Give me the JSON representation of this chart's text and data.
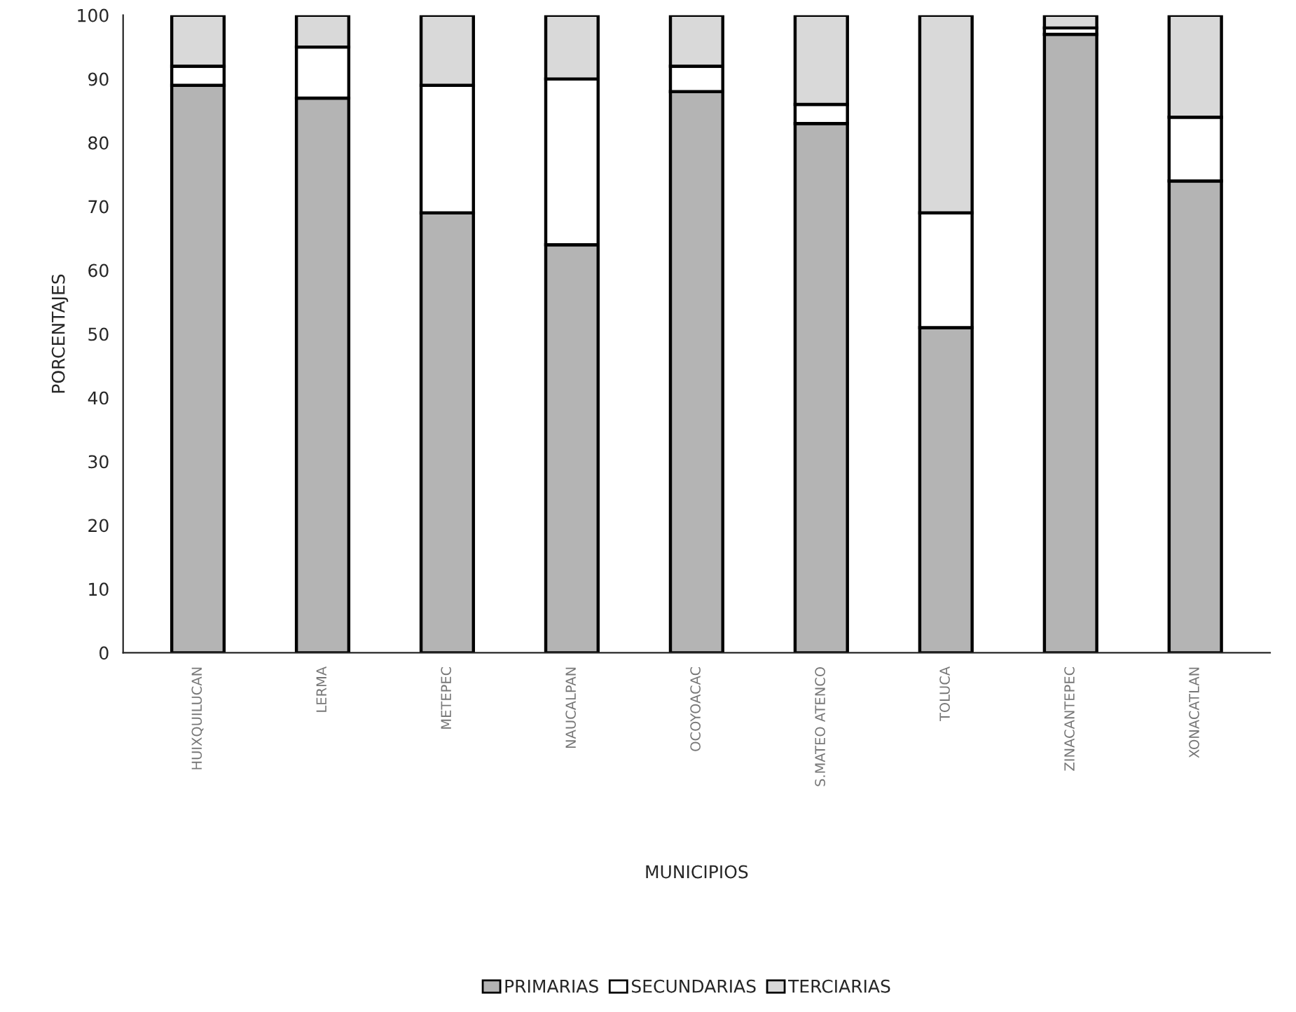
{
  "chart_data": {
    "type": "bar",
    "stacked": true,
    "xlabel": "MUNICIPIOS",
    "ylabel": "PORCENTAJES",
    "categories": [
      "HUIXQUILUCAN",
      "LERMA",
      "METEPEC",
      "NAUCALPAN",
      "OCOYOACAC",
      "S.MATEO ATENCO",
      "TOLUCA",
      "ZINACANTEPEC",
      "XONACATLAN"
    ],
    "series": [
      {
        "name": "PRIMARIAS",
        "color": "#b4b4b4",
        "values": [
          89,
          87,
          69,
          64,
          88,
          83,
          51,
          97,
          74
        ]
      },
      {
        "name": "SECUNDARIAS",
        "color": "#ffffff",
        "values": [
          3,
          8,
          20,
          26,
          4,
          3,
          18,
          1,
          10
        ]
      },
      {
        "name": "TERCIARIAS",
        "color": "#d9d9d9",
        "values": [
          8,
          5,
          11,
          10,
          8,
          14,
          31,
          2,
          16
        ]
      }
    ],
    "ylim": [
      0,
      100
    ],
    "yticks": [
      0,
      10,
      20,
      30,
      40,
      50,
      60,
      70,
      80,
      90,
      100
    ],
    "grid": false,
    "legend": "bottom"
  }
}
